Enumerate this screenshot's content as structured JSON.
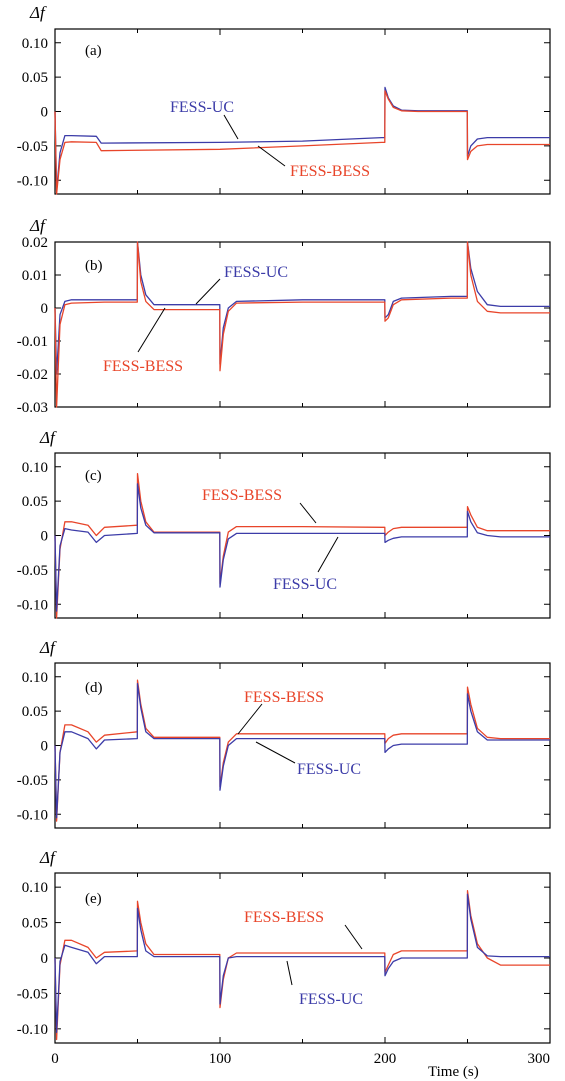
{
  "chart_data": [
    {
      "type": "line",
      "panel_label": "(a)",
      "ylabel": "Δf",
      "xlim": [
        0,
        300
      ],
      "ylim": [
        -0.12,
        0.12
      ],
      "yticks": [
        -0.1,
        -0.05,
        0,
        0.05,
        0.1
      ],
      "ytick_labels": [
        "-0.10",
        "-0.05",
        "0",
        "0.05",
        "0.10"
      ],
      "series": [
        {
          "name": "FESS-UC",
          "color": "#3c3ca8",
          "x": [
            0,
            1,
            3,
            6,
            10,
            25,
            28,
            100,
            150,
            198,
            199.9,
            200,
            202,
            205,
            210,
            220,
            249.9,
            250,
            252,
            256,
            262,
            270,
            300
          ],
          "y": [
            0,
            -0.115,
            -0.06,
            -0.035,
            -0.035,
            -0.036,
            -0.046,
            -0.045,
            -0.043,
            -0.038,
            -0.038,
            0.035,
            0.02,
            0.008,
            0.002,
            0.001,
            0.001,
            -0.065,
            -0.05,
            -0.04,
            -0.038,
            -0.038,
            -0.038
          ]
        },
        {
          "name": "FESS-BESS",
          "color": "#e8452a",
          "x": [
            0,
            1,
            3,
            6,
            10,
            25,
            28,
            100,
            150,
            198,
            199.9,
            200,
            202,
            205,
            210,
            220,
            249.9,
            250,
            252,
            256,
            262,
            270,
            300
          ],
          "y": [
            0,
            -0.12,
            -0.07,
            -0.045,
            -0.044,
            -0.045,
            -0.057,
            -0.055,
            -0.05,
            -0.045,
            -0.045,
            0.03,
            0.018,
            0.006,
            0.001,
            0,
            0,
            -0.07,
            -0.058,
            -0.05,
            -0.048,
            -0.048,
            -0.048
          ]
        }
      ],
      "annotations": [
        {
          "text": "FESS-UC",
          "series": 0
        },
        {
          "text": "FESS-BESS",
          "series": 1
        }
      ]
    },
    {
      "type": "line",
      "panel_label": "(b)",
      "ylabel": "Δf",
      "xlim": [
        0,
        300
      ],
      "ylim": [
        -0.03,
        0.02
      ],
      "yticks": [
        -0.03,
        -0.02,
        -0.01,
        0,
        0.01,
        0.02
      ],
      "ytick_labels": [
        "-0.03",
        "-0.02",
        "-0.01",
        "0",
        "0.01",
        "0.02"
      ],
      "series": [
        {
          "name": "FESS-UC",
          "color": "#3c3ca8",
          "x": [
            0,
            1,
            3,
            6,
            10,
            30,
            49.9,
            50,
            52,
            55,
            60,
            99.9,
            100,
            102,
            105,
            110,
            150,
            198,
            199.9,
            200,
            202,
            205,
            210,
            240,
            249.9,
            250,
            252,
            256,
            262,
            270,
            300
          ],
          "y": [
            0,
            -0.02,
            -0.002,
            0.002,
            0.0025,
            0.0025,
            0.0025,
            0.021,
            0.01,
            0.004,
            0.001,
            0.001,
            -0.017,
            -0.006,
            0.0,
            0.002,
            0.0025,
            0.0025,
            0.0025,
            -0.003,
            -0.002,
            0.002,
            0.003,
            0.0035,
            0.0035,
            0.021,
            0.012,
            0.005,
            0.001,
            0.0005,
            0.0005
          ]
        },
        {
          "name": "FESS-BESS",
          "color": "#e8452a",
          "x": [
            0,
            1,
            3,
            6,
            10,
            30,
            49.9,
            50,
            52,
            55,
            60,
            99.9,
            100,
            102,
            105,
            110,
            150,
            198,
            199.9,
            200,
            202,
            205,
            210,
            240,
            249.9,
            250,
            252,
            256,
            262,
            270,
            300
          ],
          "y": [
            0,
            -0.03,
            -0.005,
            0.001,
            0.0015,
            0.0018,
            0.0018,
            0.02,
            0.008,
            0.002,
            -0.0005,
            -0.0005,
            -0.019,
            -0.008,
            -0.001,
            0.0015,
            0.0018,
            0.0018,
            0.0018,
            -0.004,
            -0.003,
            0.001,
            0.0025,
            0.003,
            0.003,
            0.02,
            0.01,
            0.002,
            -0.001,
            -0.0015,
            -0.0015
          ]
        }
      ],
      "annotations": [
        {
          "text": "FESS-UC",
          "series": 0
        },
        {
          "text": "FESS-BESS",
          "series": 1
        }
      ]
    },
    {
      "type": "line",
      "panel_label": "(c)",
      "ylabel": "Δf",
      "xlim": [
        0,
        300
      ],
      "ylim": [
        -0.12,
        0.12
      ],
      "yticks": [
        -0.1,
        -0.05,
        0,
        0.05,
        0.1
      ],
      "ytick_labels": [
        "-0.10",
        "-0.05",
        "0",
        "0.05",
        "0.10"
      ],
      "series": [
        {
          "name": "FESS-BESS",
          "color": "#e8452a",
          "x": [
            0,
            1,
            3,
            6,
            10,
            20,
            25,
            30,
            49.9,
            50,
            52,
            55,
            60,
            99.9,
            100,
            102,
            105,
            110,
            150,
            198,
            199.9,
            200,
            202,
            205,
            210,
            240,
            249.9,
            250,
            252,
            256,
            262,
            270,
            300
          ],
          "y": [
            0,
            -0.125,
            -0.02,
            0.02,
            0.02,
            0.015,
            0.0,
            0.012,
            0.015,
            0.09,
            0.05,
            0.02,
            0.005,
            0.005,
            -0.07,
            -0.03,
            0.005,
            0.013,
            0.013,
            0.012,
            0.012,
            0.0,
            0.005,
            0.01,
            0.012,
            0.012,
            0.012,
            0.042,
            0.03,
            0.012,
            0.007,
            0.007,
            0.007
          ]
        },
        {
          "name": "FESS-UC",
          "color": "#3c3ca8",
          "x": [
            0,
            1,
            3,
            6,
            10,
            20,
            25,
            30,
            49.9,
            50,
            52,
            55,
            60,
            99.9,
            100,
            102,
            105,
            110,
            150,
            198,
            199.9,
            200,
            202,
            205,
            210,
            240,
            249.9,
            250,
            252,
            256,
            262,
            270,
            300
          ],
          "y": [
            0,
            -0.11,
            -0.015,
            0.01,
            0.008,
            0.005,
            -0.01,
            0.0,
            0.003,
            0.075,
            0.04,
            0.015,
            0.004,
            0.004,
            -0.075,
            -0.035,
            -0.005,
            0.003,
            0.003,
            0.003,
            0.003,
            -0.01,
            -0.007,
            -0.004,
            -0.002,
            -0.002,
            -0.002,
            0.035,
            0.02,
            0.004,
            0.0,
            -0.002,
            -0.002
          ]
        }
      ],
      "annotations": [
        {
          "text": "FESS-BESS",
          "series": 0
        },
        {
          "text": "FESS-UC",
          "series": 1
        }
      ]
    },
    {
      "type": "line",
      "panel_label": "(d)",
      "ylabel": "Δf",
      "xlim": [
        0,
        300
      ],
      "ylim": [
        -0.12,
        0.12
      ],
      "yticks": [
        -0.1,
        -0.05,
        0,
        0.05,
        0.1
      ],
      "ytick_labels": [
        "-0.10",
        "-0.05",
        "0",
        "0.05",
        "0.10"
      ],
      "series": [
        {
          "name": "FESS-BESS",
          "color": "#e8452a",
          "x": [
            0,
            1,
            3,
            6,
            10,
            20,
            25,
            30,
            49.9,
            50,
            52,
            55,
            60,
            99.9,
            100,
            102,
            105,
            110,
            150,
            198,
            199.9,
            200,
            202,
            205,
            210,
            240,
            249.9,
            250,
            252,
            256,
            262,
            270,
            300
          ],
          "y": [
            0,
            -0.11,
            -0.01,
            0.03,
            0.03,
            0.02,
            0.005,
            0.015,
            0.02,
            0.095,
            0.06,
            0.025,
            0.012,
            0.012,
            -0.06,
            -0.025,
            0.005,
            0.017,
            0.017,
            0.017,
            0.017,
            0.003,
            0.01,
            0.015,
            0.017,
            0.017,
            0.017,
            0.085,
            0.06,
            0.025,
            0.012,
            0.01,
            0.01
          ]
        },
        {
          "name": "FESS-UC",
          "color": "#3c3ca8",
          "x": [
            0,
            1,
            3,
            6,
            10,
            20,
            25,
            30,
            49.9,
            50,
            52,
            55,
            60,
            99.9,
            100,
            102,
            105,
            110,
            150,
            198,
            199.9,
            200,
            202,
            205,
            210,
            240,
            249.9,
            250,
            252,
            256,
            262,
            270,
            300
          ],
          "y": [
            0,
            -0.105,
            -0.01,
            0.02,
            0.02,
            0.01,
            -0.005,
            0.008,
            0.01,
            0.09,
            0.055,
            0.02,
            0.01,
            0.01,
            -0.065,
            -0.03,
            0.0,
            0.01,
            0.01,
            0.01,
            0.01,
            -0.01,
            -0.005,
            0.0,
            0.002,
            0.002,
            0.002,
            0.075,
            0.05,
            0.02,
            0.008,
            0.008,
            0.008
          ]
        }
      ],
      "annotations": [
        {
          "text": "FESS-BESS",
          "series": 0
        },
        {
          "text": "FESS-UC",
          "series": 1
        }
      ]
    },
    {
      "type": "line",
      "panel_label": "(e)",
      "ylabel": "Δf",
      "xlim": [
        0,
        300
      ],
      "ylim": [
        -0.12,
        0.12
      ],
      "yticks": [
        -0.1,
        -0.05,
        0,
        0.05,
        0.1
      ],
      "ytick_labels": [
        "-0.10",
        "-0.05",
        "0",
        "0.05",
        "0.10"
      ],
      "xticks": [
        0,
        100,
        200,
        300
      ],
      "xtick_labels": [
        "0",
        "100",
        "200",
        "300"
      ],
      "xlabel": "Time (s)",
      "series": [
        {
          "name": "FESS-BESS",
          "color": "#e8452a",
          "x": [
            0,
            1,
            3,
            6,
            10,
            20,
            25,
            30,
            49.9,
            50,
            52,
            55,
            60,
            99.9,
            100,
            102,
            105,
            110,
            150,
            198,
            199.9,
            200,
            202,
            205,
            210,
            240,
            249.9,
            250,
            252,
            256,
            262,
            270,
            300
          ],
          "y": [
            0,
            -0.115,
            -0.01,
            0.025,
            0.025,
            0.015,
            0.0,
            0.008,
            0.01,
            0.08,
            0.05,
            0.02,
            0.005,
            0.005,
            -0.07,
            -0.03,
            0.0,
            0.007,
            0.007,
            0.007,
            0.007,
            -0.02,
            -0.01,
            0.005,
            0.01,
            0.01,
            0.01,
            0.095,
            0.06,
            0.02,
            0.0,
            -0.01,
            -0.01
          ]
        },
        {
          "name": "FESS-UC",
          "color": "#3c3ca8",
          "x": [
            0,
            1,
            3,
            6,
            10,
            20,
            25,
            30,
            49.9,
            50,
            52,
            55,
            60,
            99.9,
            100,
            102,
            105,
            110,
            150,
            198,
            199.9,
            200,
            202,
            205,
            210,
            240,
            249.9,
            250,
            252,
            256,
            262,
            270,
            300
          ],
          "y": [
            0,
            -0.105,
            -0.005,
            0.018,
            0.015,
            0.008,
            -0.008,
            0.002,
            0.002,
            0.07,
            0.04,
            0.01,
            0.002,
            0.002,
            -0.065,
            -0.025,
            0.0,
            0.002,
            0.002,
            0.002,
            0.002,
            -0.025,
            -0.015,
            -0.005,
            0.0,
            0.0,
            0.0,
            0.09,
            0.055,
            0.015,
            0.003,
            0.002,
            0.002
          ]
        }
      ],
      "annotations": [
        {
          "text": "FESS-BESS",
          "series": 0
        },
        {
          "text": "FESS-UC",
          "series": 1
        }
      ]
    }
  ]
}
